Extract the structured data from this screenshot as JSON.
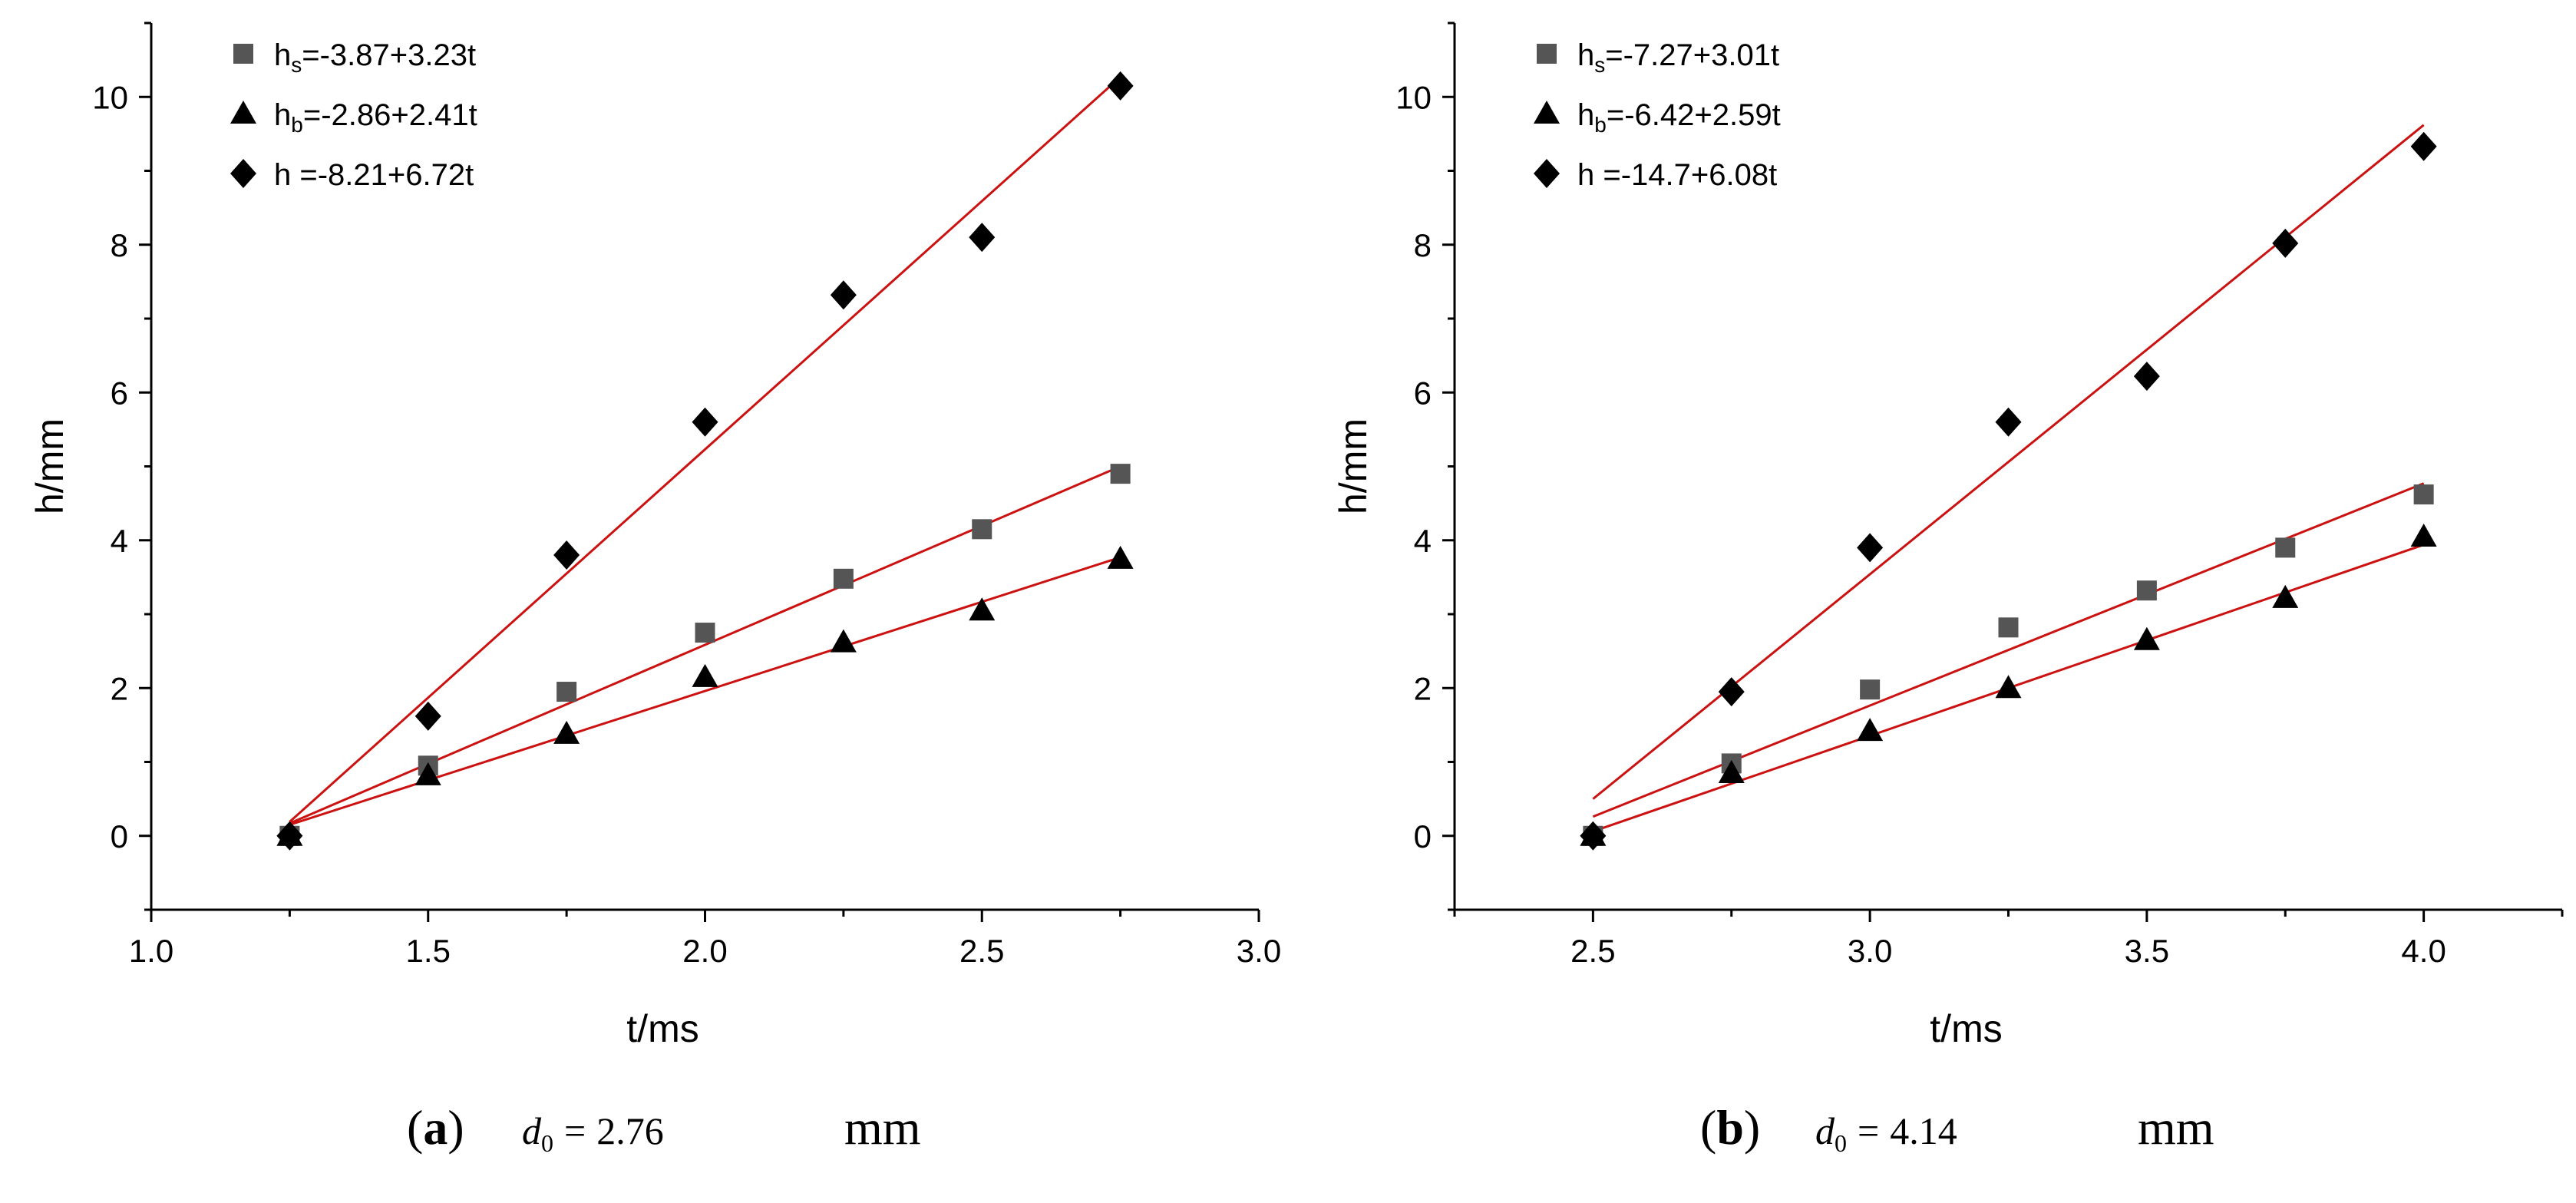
{
  "charts": [
    {
      "id": "a",
      "caption": {
        "label": "(a)",
        "letter": "a",
        "var_main": "d",
        "var_sub": "0",
        "equals": "=",
        "value": "2.76",
        "unit": "mm"
      },
      "chart_data": {
        "type": "scatter",
        "xlabel": "t/ms",
        "ylabel": "h/mm",
        "xlim": [
          1.0,
          3.0
        ],
        "ylim": [
          -1,
          11
        ],
        "xticks": [
          1.0,
          1.5,
          2.0,
          2.5,
          3.0
        ],
        "xtick_labels": [
          "1.0",
          "1.5",
          "2.0",
          "2.5",
          "3.0"
        ],
        "yticks": [
          0,
          2,
          4,
          6,
          8,
          10
        ],
        "ytick_labels": [
          "0",
          "2",
          "4",
          "6",
          "8",
          "10"
        ],
        "legend_position": "top-left",
        "series": [
          {
            "name": "hs",
            "marker": "square",
            "color": "#555555",
            "legend": {
              "base": "h",
              "sub": "s",
              "eq": "=-3.87+3.23t"
            },
            "x": [
              1.25,
              1.5,
              1.75,
              2.0,
              2.25,
              2.5,
              2.75
            ],
            "y": [
              0.0,
              0.95,
              1.95,
              2.75,
              3.48,
              4.15,
              4.9
            ],
            "fit": {
              "x": [
                1.25,
                2.75
              ],
              "y": [
                0.17,
                5.0
              ]
            }
          },
          {
            "name": "hb",
            "marker": "triangle",
            "color": "#000000",
            "legend": {
              "base": "h",
              "sub": "b",
              "eq": "=-2.86+2.41t"
            },
            "x": [
              1.25,
              1.5,
              1.75,
              2.0,
              2.25,
              2.5,
              2.75
            ],
            "y": [
              0.0,
              0.82,
              1.38,
              2.15,
              2.62,
              3.05,
              3.75
            ],
            "fit": {
              "x": [
                1.25,
                2.75
              ],
              "y": [
                0.15,
                3.77
              ]
            }
          },
          {
            "name": "h",
            "marker": "diamond",
            "color": "#000000",
            "legend": {
              "base": "h",
              "sub": "",
              "eq": " =-8.21+6.72t"
            },
            "x": [
              1.25,
              1.5,
              1.75,
              2.0,
              2.25,
              2.5,
              2.75
            ],
            "y": [
              0.0,
              1.62,
              3.8,
              5.6,
              7.32,
              8.1,
              10.15
            ],
            "fit": {
              "x": [
                1.25,
                2.75
              ],
              "y": [
                0.19,
                10.27
              ]
            }
          }
        ]
      }
    },
    {
      "id": "b",
      "caption": {
        "label": "(b)",
        "letter": "b",
        "var_main": "d",
        "var_sub": "0",
        "equals": "=",
        "value": "4.14",
        "unit": "mm"
      },
      "chart_data": {
        "type": "scatter",
        "xlabel": "t/ms",
        "ylabel": "h/mm",
        "xlim": [
          2.25,
          4.25
        ],
        "ylim": [
          -1,
          11
        ],
        "xticks": [
          2.5,
          3.0,
          3.5,
          4.0
        ],
        "xtick_labels": [
          "2.5",
          "3.0",
          "3.5",
          "4.0"
        ],
        "yticks": [
          0,
          2,
          4,
          6,
          8,
          10
        ],
        "ytick_labels": [
          "0",
          "2",
          "4",
          "6",
          "8",
          "10"
        ],
        "legend_position": "top-left",
        "series": [
          {
            "name": "hs",
            "marker": "square",
            "color": "#555555",
            "legend": {
              "base": "h",
              "sub": "s",
              "eq": "=-7.27+3.01t"
            },
            "x": [
              2.5,
              2.75,
              3.0,
              3.25,
              3.5,
              3.75,
              4.0
            ],
            "y": [
              0.0,
              0.98,
              1.98,
              2.82,
              3.32,
              3.9,
              4.62
            ],
            "fit": {
              "x": [
                2.5,
                4.0
              ],
              "y": [
                0.26,
                4.77
              ]
            }
          },
          {
            "name": "hb",
            "marker": "triangle",
            "color": "#000000",
            "legend": {
              "base": "h",
              "sub": "b",
              "eq": "=-6.42+2.59t"
            },
            "x": [
              2.5,
              2.75,
              3.0,
              3.25,
              3.5,
              3.75,
              4.0
            ],
            "y": [
              0.0,
              0.85,
              1.42,
              2.0,
              2.65,
              3.22,
              4.05
            ],
            "fit": {
              "x": [
                2.5,
                4.0
              ],
              "y": [
                0.06,
                3.94
              ]
            }
          },
          {
            "name": "h",
            "marker": "diamond",
            "color": "#000000",
            "legend": {
              "base": "h",
              "sub": "",
              "eq": " =-14.7+6.08t"
            },
            "x": [
              2.5,
              2.75,
              3.0,
              3.25,
              3.5,
              3.75,
              4.0
            ],
            "y": [
              0.0,
              1.95,
              3.9,
              5.6,
              6.22,
              8.02,
              9.33
            ],
            "fit": {
              "x": [
                2.5,
                4.0
              ],
              "y": [
                0.5,
                9.62
              ]
            }
          }
        ]
      }
    }
  ],
  "style": {
    "fit_color": "#cc1111",
    "axis_color": "#000000",
    "square_color": "#555555"
  }
}
